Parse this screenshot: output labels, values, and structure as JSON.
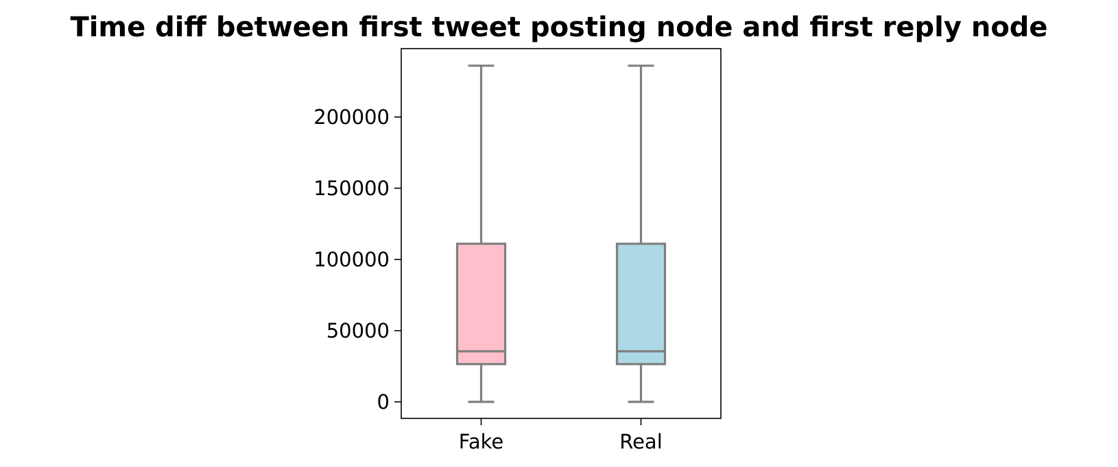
{
  "chart_data": {
    "type": "box",
    "title": "Time diff between first tweet posting node and first reply node",
    "xlabel": "",
    "ylabel": "",
    "categories": [
      "Fake",
      "Real"
    ],
    "ylim": [
      -11600,
      248000
    ],
    "yticks": [
      0,
      50000,
      100000,
      150000,
      200000
    ],
    "ytick_labels": [
      "0",
      "50000",
      "100000",
      "150000",
      "200000"
    ],
    "grid": false,
    "legend": "none",
    "series": [
      {
        "category": "Fake",
        "whisker_low": 0,
        "q1": 26500,
        "median": 35500,
        "q3": 111000,
        "whisker_high": 236000,
        "color": "#ffc0cb"
      },
      {
        "category": "Real",
        "whisker_low": 0,
        "q1": 26500,
        "median": 35500,
        "q3": 111000,
        "whisker_high": 236000,
        "color": "#add8e6"
      }
    ],
    "line_color": "#7f7f7f"
  }
}
